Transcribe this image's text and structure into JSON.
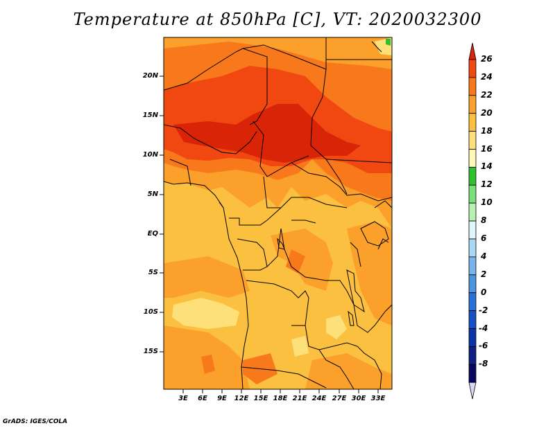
{
  "title": "Temperature at 850hPa [C], VT: 2020032300",
  "footer": "GrADS: IGES/COLA",
  "map": {
    "lat_labels": [
      "20N",
      "15N",
      "10N",
      "5N",
      "EQ",
      "5S",
      "10S",
      "15S"
    ],
    "lon_labels": [
      "3E",
      "6E",
      "9E",
      "12E",
      "15E",
      "18E",
      "21E",
      "24E",
      "27E",
      "30E",
      "33E"
    ]
  },
  "colorbar": {
    "labels": [
      "26",
      "24",
      "22",
      "20",
      "18",
      "16",
      "14",
      "12",
      "10",
      "8",
      "6",
      "4",
      "2",
      "0",
      "-2",
      "-4",
      "-6",
      "-8"
    ],
    "colors": [
      "#d92408",
      "#f04810",
      "#f8781c",
      "#fca02c",
      "#fcc040",
      "#fde07a",
      "#fef8b8",
      "#2ec02e",
      "#78e078",
      "#b8f0b0",
      "#e0f4fc",
      "#a8d8f4",
      "#78b4ec",
      "#4c94e0",
      "#2870d8",
      "#1450c4",
      "#0a34a8",
      "#102080",
      "#080860",
      "#d8d8f4"
    ]
  }
}
